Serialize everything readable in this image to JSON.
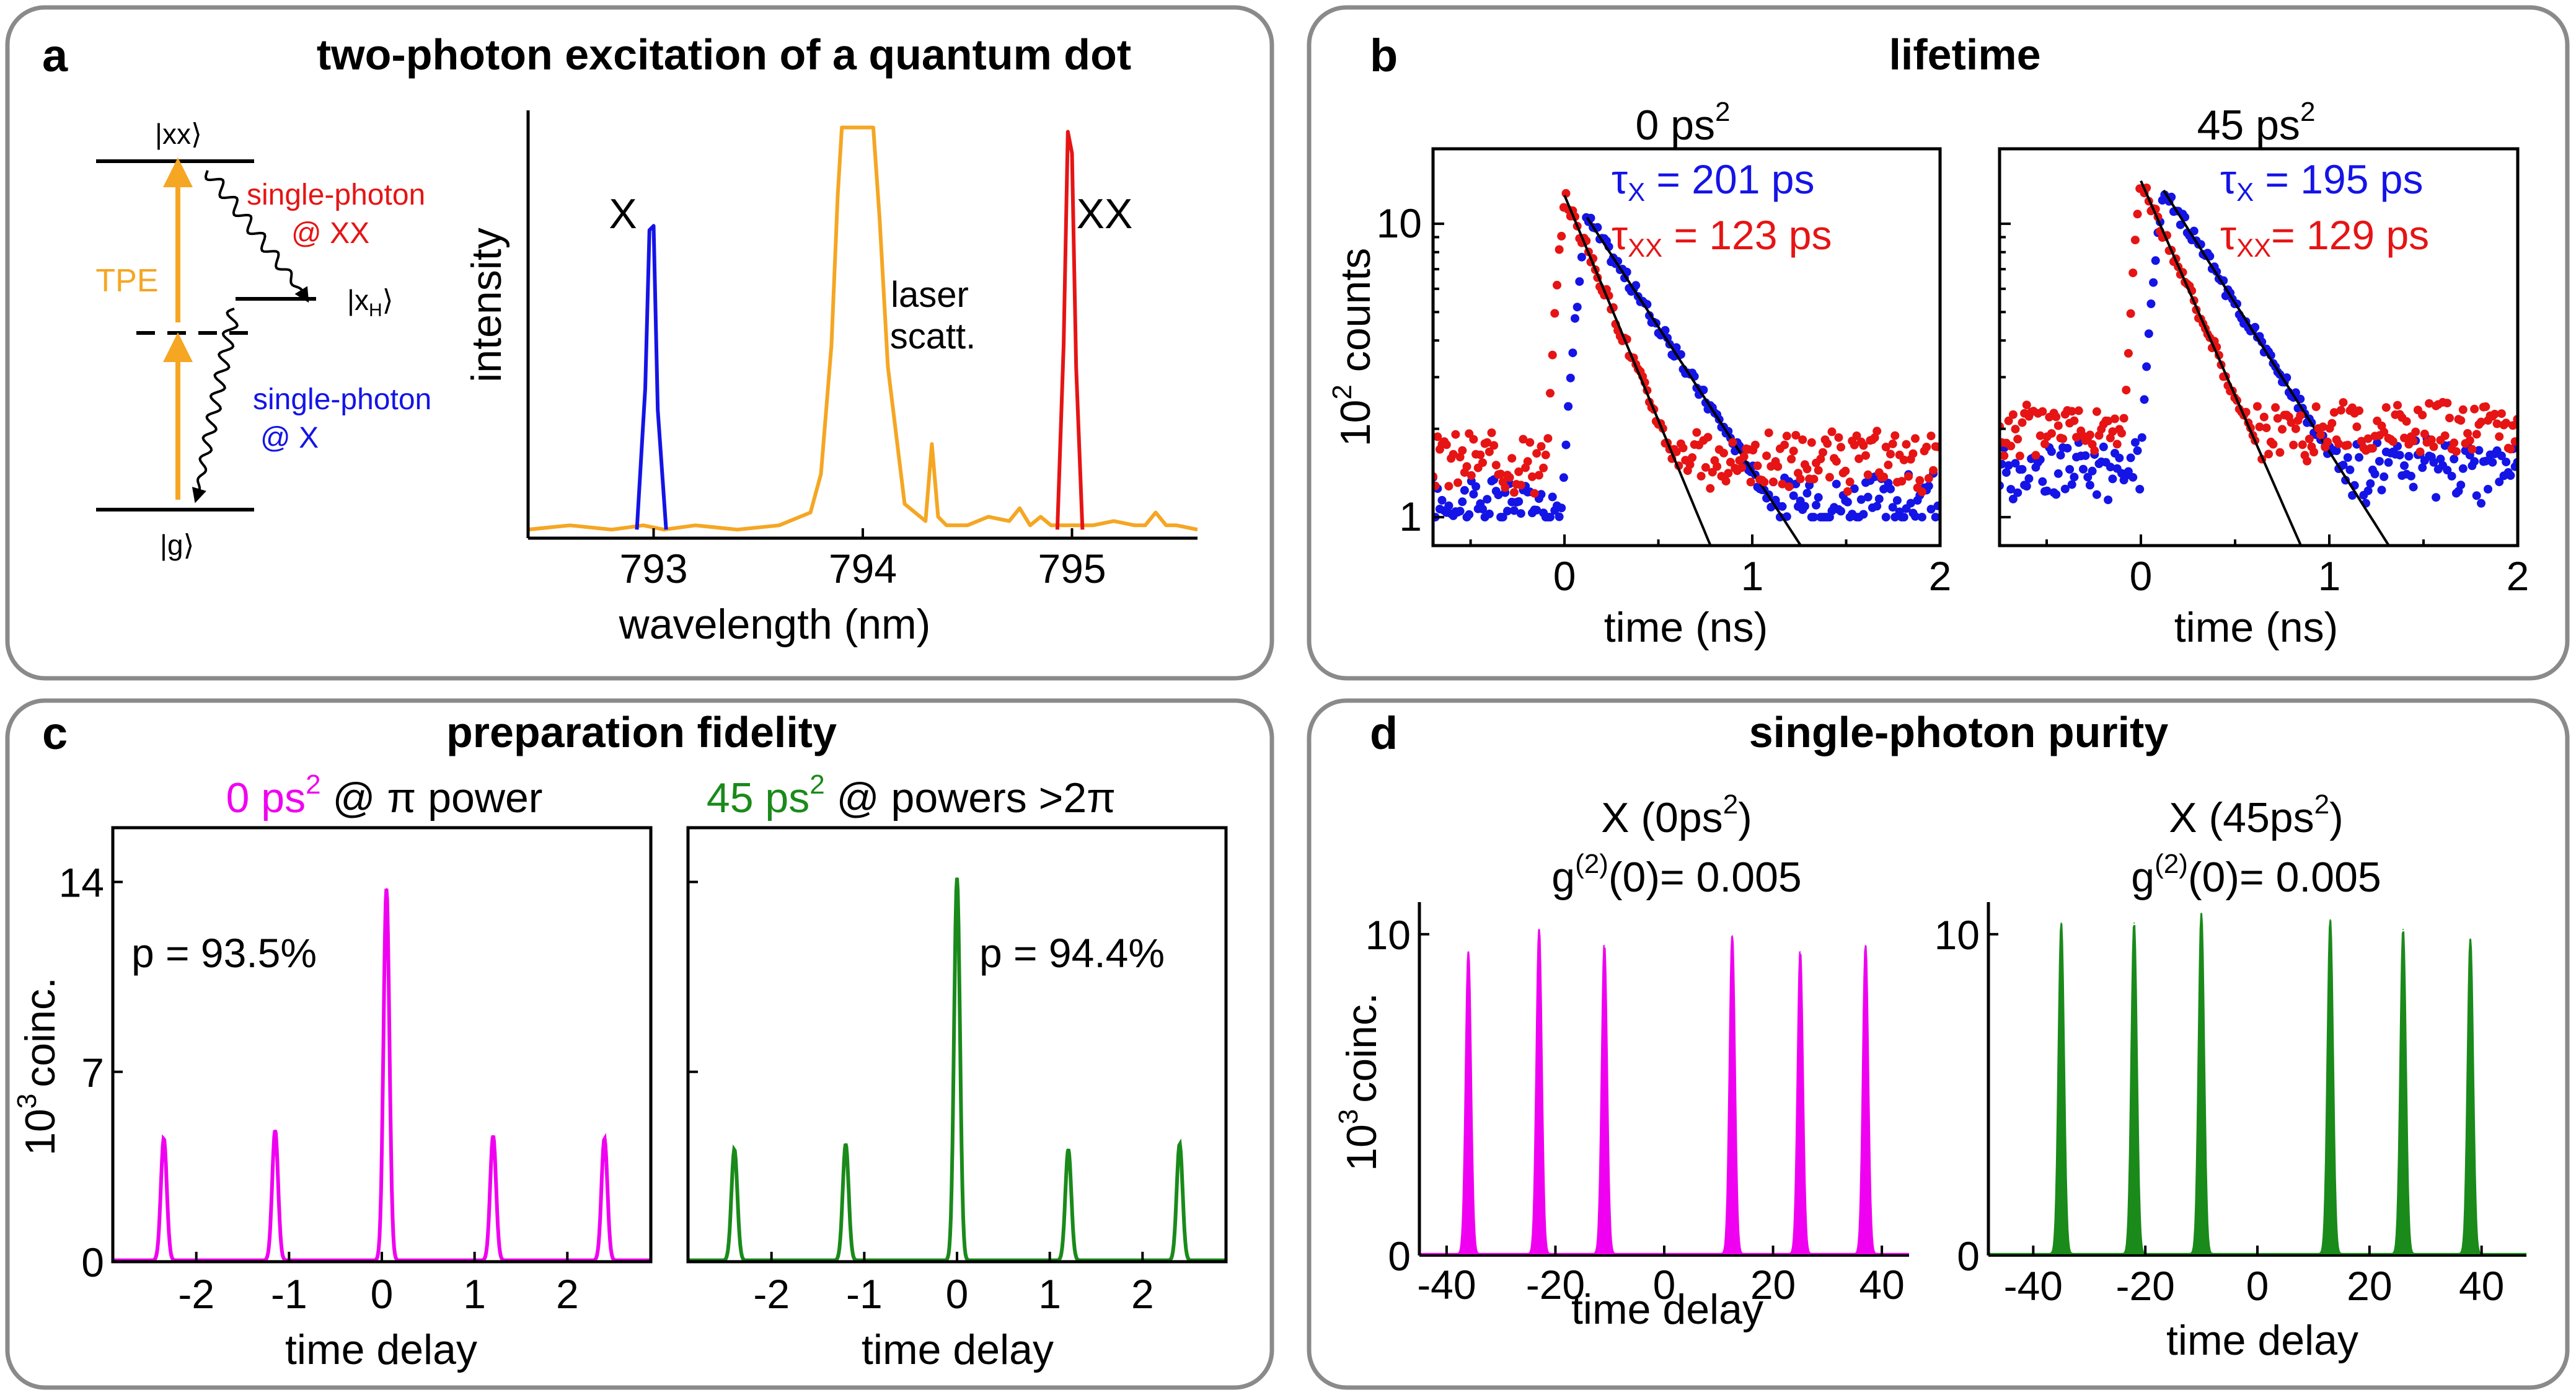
{
  "colors": {
    "blue": "#1414e6",
    "red": "#e61414",
    "orange": "#f5a623",
    "magenta": "#f000f0",
    "green": "#1a8a1a",
    "black": "#000000",
    "frame": "#8a8a8a"
  },
  "panels": {
    "a": {
      "letter": "a",
      "title": "two-photon excitation of a quantum dot"
    },
    "b": {
      "letter": "b",
      "title": "lifetime"
    },
    "c": {
      "letter": "c",
      "title": "preparation fidelity"
    },
    "d": {
      "letter": "d",
      "title": "single-photon purity"
    }
  },
  "level_diagram": {
    "xx_level": "|xx⟩",
    "xh_level_main": "|x",
    "xh_level_sub": "H",
    "xh_level_close": "⟩",
    "g_level": "|g⟩",
    "tpe_label": "TPE",
    "emission_xx_line1": "single-photon",
    "emission_xx_line2": "@ XX",
    "emission_x_line1": "single-photon",
    "emission_x_line2": "@ X"
  },
  "chart_data": [
    {
      "id": "spectrum",
      "type": "line",
      "title": "",
      "xlabel": "wavelength (nm)",
      "ylabel": "intensity",
      "xlim": [
        792.4,
        795.6
      ],
      "ylim": [
        0,
        1
      ],
      "xticks": [
        793,
        794,
        795
      ],
      "xtick_labels": [
        "793",
        "794",
        "795"
      ],
      "annotations": {
        "x_peak": "X",
        "xx_peak": "XX",
        "laser_line1": "laser",
        "laser_line2": "scatt."
      },
      "series": [
        {
          "name": "background",
          "color": "orange",
          "x": [
            792.4,
            792.6,
            792.8,
            792.95,
            793.05,
            793.2,
            793.4,
            793.6,
            793.75,
            793.8,
            793.85,
            793.88,
            793.9,
            794.05,
            794.08,
            794.12,
            794.2,
            794.3,
            794.33,
            794.36,
            794.4,
            794.5,
            794.6,
            794.7,
            794.75,
            794.8,
            794.85,
            794.9,
            795.1,
            795.2,
            795.3,
            795.35,
            795.4,
            795.45,
            795.5,
            795.6
          ],
          "y": [
            0.02,
            0.03,
            0.02,
            0.03,
            0.02,
            0.03,
            0.02,
            0.03,
            0.06,
            0.15,
            0.45,
            0.8,
            0.96,
            0.96,
            0.75,
            0.4,
            0.08,
            0.04,
            0.22,
            0.05,
            0.03,
            0.03,
            0.05,
            0.04,
            0.07,
            0.03,
            0.05,
            0.03,
            0.03,
            0.04,
            0.03,
            0.03,
            0.06,
            0.03,
            0.03,
            0.02
          ]
        },
        {
          "name": "X",
          "color": "blue",
          "x": [
            792.92,
            792.96,
            792.98,
            793.0,
            793.02,
            793.06
          ],
          "y": [
            0.02,
            0.35,
            0.72,
            0.73,
            0.3,
            0.02
          ]
        },
        {
          "name": "XX",
          "color": "red",
          "x": [
            794.93,
            794.96,
            794.98,
            795.0,
            795.02,
            795.05
          ],
          "y": [
            0.02,
            0.45,
            0.95,
            0.9,
            0.4,
            0.02
          ]
        }
      ]
    },
    {
      "id": "lifetime_0",
      "type": "scatter",
      "title": "0 ps",
      "title_sup": "2",
      "xlabel": "time (ns)",
      "ylabel": "10",
      "ylabel_sup": "2",
      "ylabel_rest": "counts",
      "xlim": [
        -0.7,
        2.0
      ],
      "ylim": [
        0.8,
        18
      ],
      "yscale": "log",
      "xticks": [
        0,
        1,
        2
      ],
      "yticks": [
        1,
        10
      ],
      "ytick_labels": [
        "1",
        "10"
      ],
      "legend": {
        "tau_x_sym": "τ",
        "tau_x_sub": "X",
        "tau_x_value": " = 201 ps",
        "tau_xx_sym": "τ",
        "tau_xx_sub": "XX",
        "tau_xx_value": " = 123 ps"
      },
      "series": [
        {
          "name": "X",
          "color": "blue",
          "tau_ns": 0.201,
          "rise_ns": 0.05,
          "peak": 10.5,
          "t0": 0.0,
          "plateau": 1.0
        },
        {
          "name": "XX",
          "color": "red",
          "tau_ns": 0.123,
          "peak": 12.5,
          "t0": 0.0,
          "plateau": 1.4
        }
      ]
    },
    {
      "id": "lifetime_45",
      "type": "scatter",
      "title": "45 ps",
      "title_sup": "2",
      "xlabel": "time (ns)",
      "ylabel": "",
      "xlim": [
        -0.75,
        2.0
      ],
      "ylim": [
        0.8,
        18
      ],
      "yscale": "log",
      "xticks": [
        0,
        1,
        2
      ],
      "yticks": [
        1,
        10
      ],
      "legend": {
        "tau_x_sym": "τ",
        "tau_x_sub": "X",
        "tau_x_value": " = 195 ps",
        "tau_xx_sym": "τ",
        "tau_xx_sub": "XX",
        "tau_xx_value": "= 129 ps"
      },
      "series": [
        {
          "name": "X",
          "color": "blue",
          "tau_ns": 0.195,
          "peak": 13.0,
          "t0": 0.0,
          "plateau": 1.3
        },
        {
          "name": "XX",
          "color": "red",
          "tau_ns": 0.129,
          "peak": 14.0,
          "t0": 0.0,
          "plateau": 1.8
        }
      ]
    },
    {
      "id": "fidelity_0",
      "type": "line",
      "title_colored": "0 ps",
      "title_sup": "2",
      "title_rest": " @ π power",
      "title_color": "magenta",
      "xlabel": "time delay",
      "ylabel": "10",
      "ylabel_sup": "3",
      "ylabel_rest": "coinc.",
      "xlim": [
        -2.9,
        2.9
      ],
      "ylim": [
        0,
        16
      ],
      "xticks": [
        -2,
        -1,
        0,
        1,
        2
      ],
      "xtick_labels": [
        "-2",
        "-1",
        "0",
        "1",
        "2"
      ],
      "yticks": [
        0,
        7,
        14
      ],
      "ytick_labels": [
        "0",
        "7",
        "14"
      ],
      "annotation": "p = 93.5%",
      "series": [
        {
          "name": "coincidences",
          "color": "magenta",
          "peak_positions": [
            -2.35,
            -1.15,
            0.05,
            1.2,
            2.4
          ],
          "peak_heights": [
            4.5,
            4.8,
            13.7,
            4.6,
            4.5
          ]
        }
      ]
    },
    {
      "id": "fidelity_45",
      "type": "line",
      "title_colored": "45 ps",
      "title_sup": "2",
      "title_rest": " @ powers >2π",
      "title_color": "green",
      "xlabel": "time delay",
      "ylabel": "",
      "xlim": [
        -2.9,
        2.9
      ],
      "ylim": [
        0,
        16
      ],
      "xticks": [
        -2,
        -1,
        0,
        1,
        2
      ],
      "xtick_labels": [
        "-2",
        "-1",
        "0",
        "1",
        "2"
      ],
      "yticks": [
        0,
        7,
        14
      ],
      "annotation": "p = 94.4%",
      "series": [
        {
          "name": "coincidences",
          "color": "green",
          "peak_positions": [
            -2.4,
            -1.2,
            0.0,
            1.2,
            2.4
          ],
          "peak_heights": [
            4.1,
            4.3,
            14.1,
            4.1,
            4.3
          ]
        }
      ]
    },
    {
      "id": "purity_0",
      "type": "line",
      "title_line1": "X (0ps",
      "title_line1_sup": "2",
      "title_line1_close": ")",
      "title_line2": "g",
      "title_line2_sup": "(2)",
      "title_line2_rest": "(0)= 0.005",
      "xlabel": "time delay",
      "ylabel": "10",
      "ylabel_sup": "3",
      "ylabel_rest": "coinc.",
      "xlim": [
        -45,
        45
      ],
      "ylim": [
        0,
        11
      ],
      "xticks": [
        -40,
        -20,
        0,
        20,
        40
      ],
      "xtick_labels": [
        "-40",
        "-20",
        "0",
        "20",
        "40"
      ],
      "yticks": [
        0,
        10
      ],
      "ytick_labels": [
        "0",
        "10"
      ],
      "series": [
        {
          "name": "coincidences",
          "color": "magenta",
          "peak_positions": [
            -36,
            -23,
            -11,
            12.5,
            25,
            37
          ],
          "peak_heights": [
            9.4,
            10.1,
            9.6,
            9.9,
            9.4,
            9.6
          ]
        }
      ]
    },
    {
      "id": "purity_45",
      "type": "line",
      "title_line1": "X (45ps",
      "title_line1_sup": "2",
      "title_line1_close": ")",
      "title_line2": "g",
      "title_line2_sup": "(2)",
      "title_line2_rest": "(0)= 0.005",
      "xlabel": "time delay",
      "ylabel": "",
      "xlim": [
        -48,
        48
      ],
      "ylim": [
        0,
        11
      ],
      "xticks": [
        -40,
        -20,
        0,
        20,
        40
      ],
      "xtick_labels": [
        "-40",
        "-20",
        "0",
        "20",
        "40"
      ],
      "yticks": [
        0,
        10
      ],
      "ytick_labels": [
        "0",
        "10"
      ],
      "series": [
        {
          "name": "coincidences",
          "color": "green",
          "peak_positions": [
            -35,
            -22,
            -10,
            13,
            26,
            38
          ],
          "peak_heights": [
            10.3,
            10.3,
            10.6,
            10.4,
            10.1,
            9.8
          ]
        }
      ]
    }
  ]
}
